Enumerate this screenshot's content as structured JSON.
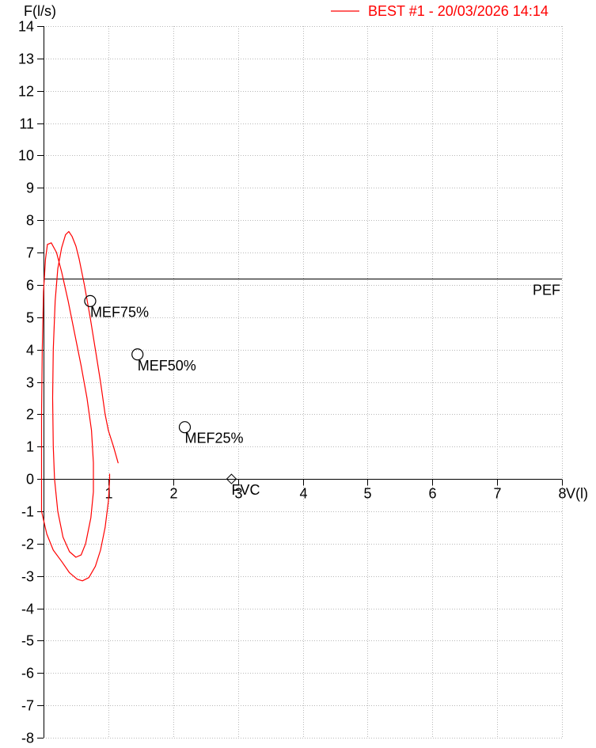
{
  "chart_data": {
    "type": "line",
    "ylabel": "F(l/s)",
    "xlabel": "V(l)",
    "xlim": [
      0,
      8
    ],
    "ylim": [
      -8,
      14
    ],
    "x_ticks": [
      "1",
      "2",
      "3",
      "4",
      "5",
      "6",
      "7",
      "8"
    ],
    "y_ticks": [
      "14",
      "13",
      "12",
      "11",
      "10",
      "9",
      "8",
      "7",
      "6",
      "5",
      "4",
      "3",
      "2",
      "1",
      "0",
      "-1",
      "-2",
      "-3",
      "-4",
      "-5",
      "-6",
      "-7",
      "-8"
    ],
    "grid": true,
    "legend_position": "top-right",
    "series": [
      {
        "name": "BEST #1 - 20/03/2026  14:14",
        "color": "#ff0000",
        "points": [
          [
            1.15,
            0.5
          ],
          [
            1.08,
            1.0
          ],
          [
            1.0,
            1.5
          ],
          [
            0.95,
            2.0
          ],
          [
            0.88,
            3.0
          ],
          [
            0.8,
            4.0
          ],
          [
            0.72,
            5.0
          ],
          [
            0.63,
            6.0
          ],
          [
            0.55,
            6.8
          ],
          [
            0.5,
            7.2
          ],
          [
            0.44,
            7.5
          ],
          [
            0.39,
            7.65
          ],
          [
            0.34,
            7.55
          ],
          [
            0.28,
            7.15
          ],
          [
            0.22,
            6.5
          ],
          [
            0.18,
            5.5
          ],
          [
            0.15,
            4.0
          ],
          [
            0.14,
            2.5
          ],
          [
            0.15,
            1.0
          ],
          [
            0.17,
            0.0
          ],
          [
            0.22,
            -1.0
          ],
          [
            0.3,
            -1.8
          ],
          [
            0.4,
            -2.25
          ],
          [
            0.5,
            -2.42
          ],
          [
            0.58,
            -2.35
          ],
          [
            0.65,
            -2.0
          ],
          [
            0.73,
            -1.2
          ],
          [
            0.77,
            -0.4
          ],
          [
            0.77,
            0.5
          ],
          [
            0.74,
            1.5
          ],
          [
            0.67,
            2.5
          ],
          [
            0.58,
            3.5
          ],
          [
            0.48,
            4.5
          ],
          [
            0.38,
            5.5
          ],
          [
            0.28,
            6.4
          ],
          [
            0.2,
            7.0
          ],
          [
            0.12,
            7.3
          ],
          [
            0.06,
            7.25
          ],
          [
            0.03,
            6.8
          ],
          [
            0.0,
            5.8
          ],
          [
            -0.02,
            4.0
          ],
          [
            -0.03,
            2.0
          ],
          [
            -0.03,
            0.0
          ],
          [
            -0.03,
            -1.0
          ],
          [
            0.05,
            -1.7
          ],
          [
            0.15,
            -2.2
          ],
          [
            0.28,
            -2.55
          ],
          [
            0.4,
            -2.9
          ],
          [
            0.52,
            -3.1
          ],
          [
            0.6,
            -3.15
          ],
          [
            0.7,
            -3.05
          ],
          [
            0.8,
            -2.7
          ],
          [
            0.88,
            -2.2
          ],
          [
            0.95,
            -1.5
          ],
          [
            1.0,
            -0.7
          ],
          [
            1.02,
            0.0
          ],
          [
            1.02,
            0.15
          ]
        ]
      }
    ],
    "reference_lines": [
      {
        "label": "PEF",
        "y": 6.2,
        "color": "#000000"
      }
    ],
    "markers": [
      {
        "label": "MEF75%",
        "x": 0.72,
        "y": 5.5,
        "shape": "circle"
      },
      {
        "label": "MEF50%",
        "x": 1.45,
        "y": 3.85,
        "shape": "circle"
      },
      {
        "label": "MEF25%",
        "x": 2.18,
        "y": 1.6,
        "shape": "circle"
      },
      {
        "label": "FVC",
        "x": 2.9,
        "y": 0.0,
        "shape": "diamond"
      }
    ]
  }
}
